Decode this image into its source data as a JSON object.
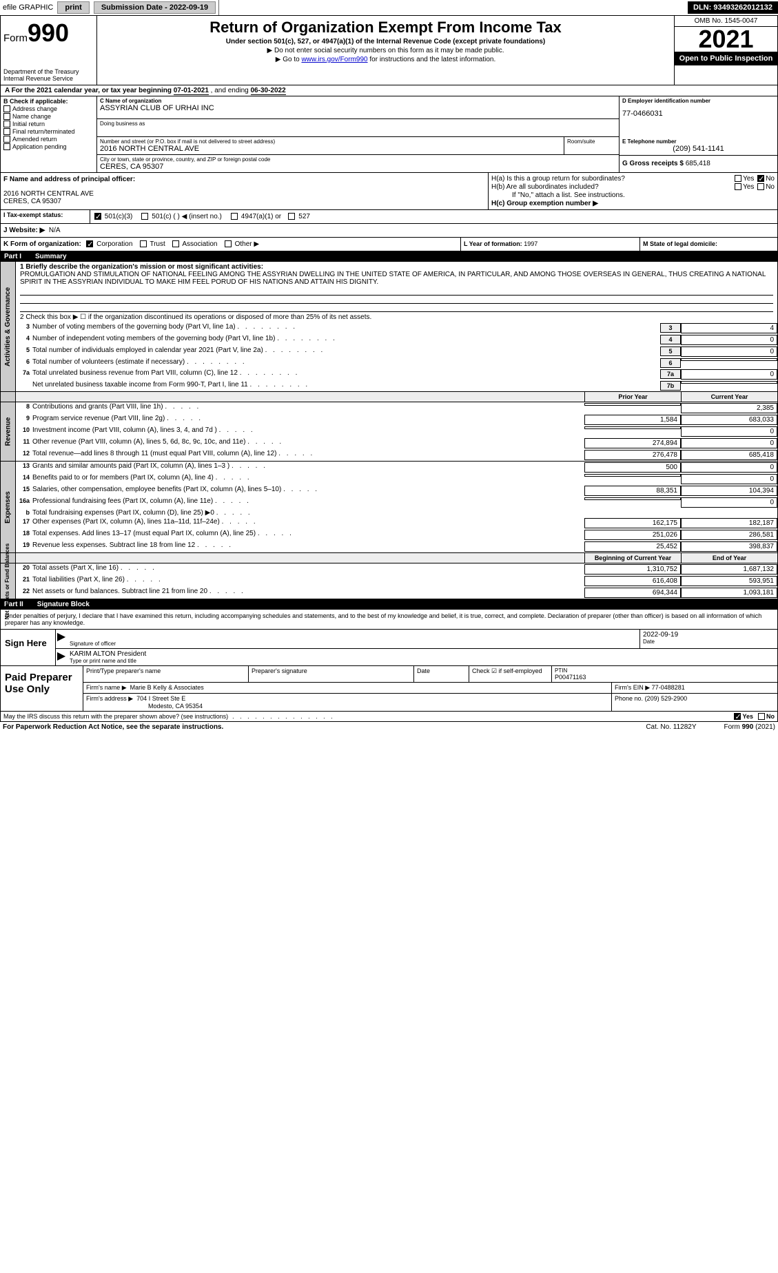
{
  "topbar": {
    "efile": "efile GRAPHIC",
    "print": "print",
    "subdate_label": "Submission Date - 2022-09-19",
    "dln": "DLN: 93493262012132"
  },
  "header": {
    "form_label": "Form",
    "form_num": "990",
    "title": "Return of Organization Exempt From Income Tax",
    "subtitle": "Under section 501(c), 527, or 4947(a)(1) of the Internal Revenue Code (except private foundations)",
    "note1": "▶ Do not enter social security numbers on this form as it may be made public.",
    "note2_pre": "▶ Go to ",
    "note2_link": "www.irs.gov/Form990",
    "note2_post": " for instructions and the latest information.",
    "dept": "Department of the Treasury\nInternal Revenue Service",
    "omb": "OMB No. 1545-0047",
    "year": "2021",
    "open": "Open to Public Inspection"
  },
  "rowA": {
    "text_pre": "A For the 2021 calendar year, or tax year beginning ",
    "begin": "07-01-2021",
    "mid": "    , and ending ",
    "end": "06-30-2022"
  },
  "boxB": {
    "label": "B Check if applicable:",
    "items": [
      "Address change",
      "Name change",
      "Initial return",
      "Final return/terminated",
      "Amended return",
      "Application pending"
    ]
  },
  "boxC": {
    "label": "C Name of organization",
    "name": "ASSYRIAN CLUB OF URHAI INC",
    "dba_label": "Doing business as",
    "addr_label": "Number and street (or P.O. box if mail is not delivered to street address)",
    "addr": "2016 NORTH CENTRAL AVE",
    "room_label": "Room/suite",
    "city_label": "City or town, state or province, country, and ZIP or foreign postal code",
    "city": "CERES, CA  95307"
  },
  "boxD": {
    "label": "D Employer identification number",
    "val": "77-0466031"
  },
  "boxE": {
    "label": "E Telephone number",
    "val": "(209) 541-1141"
  },
  "boxG": {
    "label": "G Gross receipts $",
    "val": "685,418"
  },
  "boxF": {
    "label": "F Name and address of principal officer:",
    "addr1": "2016 NORTH CENTRAL AVE",
    "addr2": "CERES, CA  95307"
  },
  "boxH": {
    "a": "H(a)  Is this a group return for subordinates?",
    "b": "H(b)  Are all subordinates included?",
    "b_note": "If \"No,\" attach a list. See instructions.",
    "c": "H(c)  Group exemption number ▶",
    "yes": "Yes",
    "no": "No"
  },
  "boxI": {
    "label": "I  Tax-exempt status:",
    "opts": [
      "501(c)(3)",
      "501(c) (   ) ◀ (insert no.)",
      "4947(a)(1) or",
      "527"
    ]
  },
  "boxJ": {
    "label": "J  Website: ▶",
    "val": "N/A"
  },
  "boxK": {
    "label": "K Form of organization:",
    "opts": [
      "Corporation",
      "Trust",
      "Association",
      "Other ▶"
    ]
  },
  "boxL": {
    "label": "L Year of formation:",
    "val": "1997"
  },
  "boxM": {
    "label": "M State of legal domicile:"
  },
  "part1": {
    "num": "Part I",
    "title": "Summary"
  },
  "summary": {
    "l1_label": "1  Briefly describe the organization's mission or most significant activities:",
    "l1_text": "PROMULGATION AND STIMULATION OF NATIONAL FEELING AMONG THE ASSYRIAN DWELLING IN THE UNITED STATE OF AMERICA, IN PARTICULAR, AND AMONG THOSE OVERSEAS IN GENERAL, THUS CREATING A NATIONAL SPIRIT IN THE ASSYRIAN INDIVIDUAL TO MAKE HIM FEEL PORUD OF HIS NATIONS AND ATTAIN HIS DIGNITY.",
    "l2": "2  Check this box ▶ ☐  if the organization discontinued its operations or disposed of more than 25% of its net assets.",
    "lines_gov": [
      {
        "n": "3",
        "t": "Number of voting members of the governing body (Part VI, line 1a)",
        "box": "3",
        "v": "4"
      },
      {
        "n": "4",
        "t": "Number of independent voting members of the governing body (Part VI, line 1b)",
        "box": "4",
        "v": "0"
      },
      {
        "n": "5",
        "t": "Total number of individuals employed in calendar year 2021 (Part V, line 2a)",
        "box": "5",
        "v": "0"
      },
      {
        "n": "6",
        "t": "Total number of volunteers (estimate if necessary)",
        "box": "6",
        "v": ""
      },
      {
        "n": "7a",
        "t": "Total unrelated business revenue from Part VIII, column (C), line 12",
        "box": "7a",
        "v": "0"
      },
      {
        "n": "",
        "t": "Net unrelated business taxable income from Form 990-T, Part I, line 11",
        "box": "7b",
        "v": ""
      }
    ],
    "prior_hdr": "Prior Year",
    "curr_hdr": "Current Year",
    "rev_lines": [
      {
        "n": "8",
        "t": "Contributions and grants (Part VIII, line 1h)",
        "p": "",
        "c": "2,385"
      },
      {
        "n": "9",
        "t": "Program service revenue (Part VIII, line 2g)",
        "p": "1,584",
        "c": "683,033"
      },
      {
        "n": "10",
        "t": "Investment income (Part VIII, column (A), lines 3, 4, and 7d )",
        "p": "",
        "c": "0"
      },
      {
        "n": "11",
        "t": "Other revenue (Part VIII, column (A), lines 5, 6d, 8c, 9c, 10c, and 11e)",
        "p": "274,894",
        "c": "0"
      },
      {
        "n": "12",
        "t": "Total revenue—add lines 8 through 11 (must equal Part VIII, column (A), line 12)",
        "p": "276,478",
        "c": "685,418"
      }
    ],
    "exp_lines": [
      {
        "n": "13",
        "t": "Grants and similar amounts paid (Part IX, column (A), lines 1–3 )",
        "p": "500",
        "c": "0"
      },
      {
        "n": "14",
        "t": "Benefits paid to or for members (Part IX, column (A), line 4)",
        "p": "",
        "c": "0"
      },
      {
        "n": "15",
        "t": "Salaries, other compensation, employee benefits (Part IX, column (A), lines 5–10)",
        "p": "88,351",
        "c": "104,394"
      },
      {
        "n": "16a",
        "t": "Professional fundraising fees (Part IX, column (A), line 11e)",
        "p": "",
        "c": "0"
      },
      {
        "n": "b",
        "t": "Total fundraising expenses (Part IX, column (D), line 25) ▶0",
        "p": "",
        "c": ""
      },
      {
        "n": "17",
        "t": "Other expenses (Part IX, column (A), lines 11a–11d, 11f–24e)",
        "p": "162,175",
        "c": "182,187"
      },
      {
        "n": "18",
        "t": "Total expenses. Add lines 13–17 (must equal Part IX, column (A), line 25)",
        "p": "251,026",
        "c": "286,581"
      },
      {
        "n": "19",
        "t": "Revenue less expenses. Subtract line 18 from line 12",
        "p": "25,452",
        "c": "398,837"
      }
    ],
    "net_hdr_p": "Beginning of Current Year",
    "net_hdr_c": "End of Year",
    "net_lines": [
      {
        "n": "20",
        "t": "Total assets (Part X, line 16)",
        "p": "1,310,752",
        "c": "1,687,132"
      },
      {
        "n": "21",
        "t": "Total liabilities (Part X, line 26)",
        "p": "616,408",
        "c": "593,951"
      },
      {
        "n": "22",
        "t": "Net assets or fund balances. Subtract line 21 from line 20",
        "p": "694,344",
        "c": "1,093,181"
      }
    ],
    "side_gov": "Activities & Governance",
    "side_rev": "Revenue",
    "side_exp": "Expenses",
    "side_net": "Net Assets or\nFund Balances"
  },
  "part2": {
    "num": "Part II",
    "title": "Signature Block"
  },
  "sig": {
    "intro": "Under penalties of perjury, I declare that I have examined this return, including accompanying schedules and statements, and to the best of my knowledge and belief, it is true, correct, and complete. Declaration of preparer (other than officer) is based on all information of which preparer has any knowledge.",
    "here": "Sign Here",
    "sig_label": "Signature of officer",
    "date_label": "Date",
    "date": "2022-09-19",
    "name": "KARIM ALTON  President",
    "name_label": "Type or print name and title"
  },
  "prep": {
    "label": "Paid Preparer Use Only",
    "h1": "Print/Type preparer's name",
    "h2": "Preparer's signature",
    "h3": "Date",
    "h4": "Check ☑ if self-employed",
    "h5_label": "PTIN",
    "h5": "P00471163",
    "firm_label": "Firm's name    ▶",
    "firm": "Marie B Kelly & Associates",
    "ein_label": "Firm's EIN ▶",
    "ein": "77-0488281",
    "addr_label": "Firm's address ▶",
    "addr1": "704 I Street Ste E",
    "addr2": "Modesto, CA  95354",
    "phone_label": "Phone no.",
    "phone": "(209) 529-2900"
  },
  "footer": {
    "q": "May the IRS discuss this return with the preparer shown above? (see instructions)",
    "yes": "Yes",
    "no": "No",
    "pra": "For Paperwork Reduction Act Notice, see the separate instructions.",
    "cat": "Cat. No. 11282Y",
    "form": "Form 990 (2021)"
  }
}
